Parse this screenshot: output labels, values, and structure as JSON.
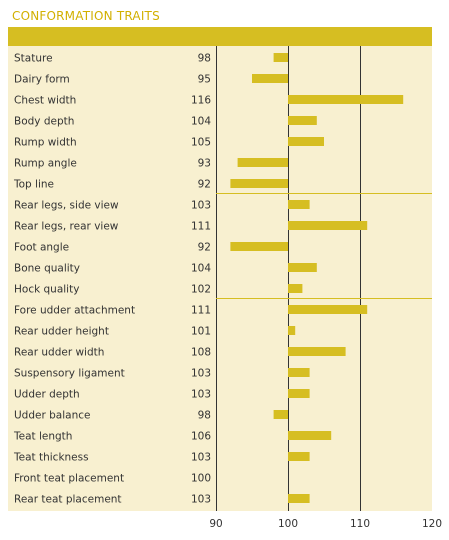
{
  "title": "CONFORMATION TRAITS",
  "colors": {
    "accent": "#d6be22",
    "header_band": "#d6be22",
    "background": "#f8f0d0",
    "bar": "#d6be22",
    "axis_line": "#333333",
    "group_divider": "#d6be22",
    "title": "#d2b000"
  },
  "chart_data": {
    "type": "bar",
    "orientation": "horizontal",
    "title": "CONFORMATION TRAITS",
    "xlabel": "",
    "ylabel": "",
    "xlim": [
      90,
      120
    ],
    "xticks": [
      90,
      100,
      110,
      120
    ],
    "baseline": 100,
    "grid": "vertical lines at 90, 100, 110",
    "group_breaks_after": [
      "Top line",
      "Hock quality"
    ],
    "categories": [
      "Stature",
      "Dairy form",
      "Chest width",
      "Body depth",
      "Rump width",
      "Rump angle",
      "Top line",
      "Rear legs, side view",
      "Rear legs, rear view",
      "Foot angle",
      "Bone quality",
      "Hock quality",
      "Fore udder attachment",
      "Rear udder height",
      "Rear udder width",
      "Suspensory ligament",
      "Udder depth",
      "Udder balance",
      "Teat length",
      "Teat thickness",
      "Front teat placement",
      "Rear teat placement"
    ],
    "values": [
      98,
      95,
      116,
      104,
      105,
      93,
      92,
      103,
      111,
      92,
      104,
      102,
      111,
      101,
      108,
      103,
      103,
      98,
      106,
      103,
      100,
      103
    ]
  }
}
